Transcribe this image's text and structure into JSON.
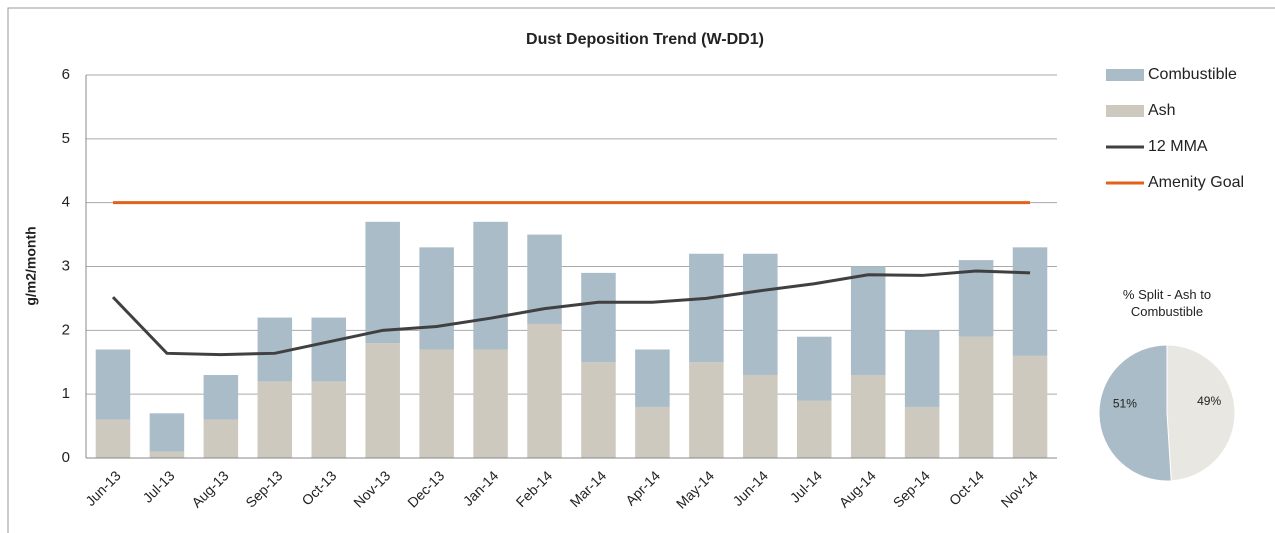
{
  "chart_data": [
    {
      "type": "bar",
      "title": "Dust Deposition Trend (W-DD1)",
      "y_label": "g/m2/month",
      "categories": [
        "Jun-13",
        "Jul-13",
        "Aug-13",
        "Sep-13",
        "Oct-13",
        "Nov-13",
        "Dec-13",
        "Jan-14",
        "Feb-14",
        "Mar-14",
        "Apr-14",
        "May-14",
        "Jun-14",
        "Jul-14",
        "Aug-14",
        "Sep-14",
        "Oct-14",
        "Nov-14"
      ],
      "series": [
        {
          "name": "Ash",
          "type": "bar",
          "color": "#cdc9bf",
          "values": [
            0.6,
            0.1,
            0.6,
            1.2,
            1.2,
            1.8,
            1.7,
            1.7,
            2.1,
            1.5,
            0.8,
            1.5,
            1.3,
            0.9,
            1.3,
            0.8,
            1.9,
            1.6
          ]
        },
        {
          "name": "Combustible",
          "type": "bar",
          "color": "#a9bcc8",
          "values": [
            1.1,
            0.6,
            0.7,
            1.0,
            1.0,
            1.9,
            1.6,
            2.0,
            1.4,
            1.4,
            0.9,
            1.7,
            1.9,
            1.0,
            1.7,
            1.2,
            1.2,
            1.7
          ]
        },
        {
          "name": "12 MMA",
          "type": "line",
          "color": "#404040",
          "values": [
            2.52,
            1.64,
            1.62,
            1.64,
            1.82,
            2.0,
            2.06,
            2.19,
            2.34,
            2.44,
            2.44,
            2.5,
            2.62,
            2.73,
            2.87,
            2.86,
            2.93,
            2.9
          ]
        },
        {
          "name": "Amenity Goal",
          "type": "line",
          "color": "#e0621b",
          "values": [
            4,
            4,
            4,
            4,
            4,
            4,
            4,
            4,
            4,
            4,
            4,
            4,
            4,
            4,
            4,
            4,
            4,
            4
          ]
        }
      ],
      "legend_order": [
        1,
        0,
        2,
        3
      ],
      "ylim": [
        0,
        6
      ],
      "yticks": [
        0,
        1,
        2,
        3,
        4,
        5,
        6
      ],
      "grid": true,
      "stacked": true,
      "legend": "right"
    },
    {
      "type": "pie",
      "title": "% Split - Ash to Combustible",
      "values": [
        49,
        51
      ],
      "value_labels": [
        "49%",
        "51%"
      ],
      "colors": [
        "#e8e7e1",
        "#a9bcc8"
      ]
    }
  ]
}
